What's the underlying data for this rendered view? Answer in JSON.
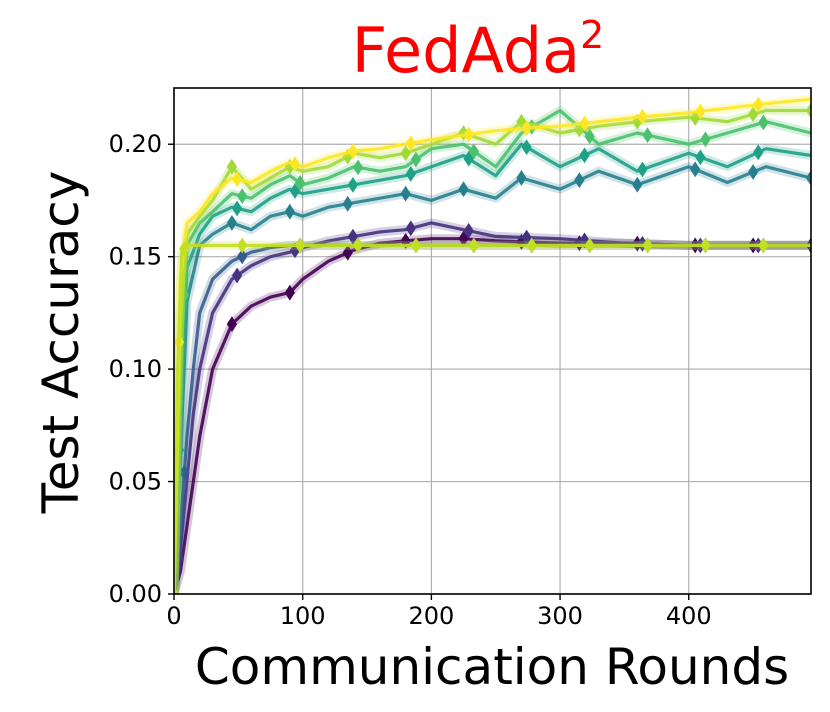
{
  "chart_data": {
    "type": "line",
    "title": "FedAda",
    "title_superscript": "2",
    "title_color": "#ff0000",
    "xlabel": "Communication Rounds",
    "ylabel": "Test Accuracy",
    "xlim": [
      0,
      495
    ],
    "ylim": [
      0.0,
      0.225
    ],
    "xticks": [
      0,
      100,
      200,
      300,
      400
    ],
    "xtick_labels": [
      "0",
      "100",
      "200",
      "300",
      "400"
    ],
    "yticks": [
      0.0,
      0.05,
      0.1,
      0.15,
      0.2
    ],
    "ytick_labels": [
      "0.00",
      "0.05",
      "0.10",
      "0.15",
      "0.20"
    ],
    "grid": true,
    "colormap": "viridis",
    "marker": "diamond",
    "marker_every_rounds": 45,
    "series": [
      {
        "color": "#440154",
        "x": [
          0,
          5,
          10,
          15,
          20,
          30,
          45,
          60,
          75,
          90,
          100,
          120,
          140,
          160,
          180,
          200,
          225,
          250,
          300,
          350,
          400,
          450,
          495
        ],
        "y": [
          0.0,
          0.01,
          0.03,
          0.05,
          0.07,
          0.1,
          0.12,
          0.128,
          0.132,
          0.134,
          0.14,
          0.148,
          0.153,
          0.156,
          0.157,
          0.158,
          0.158,
          0.157,
          0.156,
          0.156,
          0.155,
          0.155,
          0.155
        ]
      },
      {
        "color": "#46327e",
        "x": [
          0,
          5,
          10,
          15,
          20,
          30,
          45,
          60,
          75,
          90,
          100,
          120,
          140,
          160,
          180,
          200,
          225,
          250,
          300,
          350,
          400,
          450,
          495
        ],
        "y": [
          0.0,
          0.02,
          0.05,
          0.08,
          0.1,
          0.125,
          0.14,
          0.146,
          0.15,
          0.152,
          0.154,
          0.157,
          0.159,
          0.161,
          0.162,
          0.165,
          0.162,
          0.159,
          0.158,
          0.156,
          0.155,
          0.155,
          0.155
        ]
      },
      {
        "color": "#365c8d",
        "x": [
          0,
          5,
          10,
          15,
          20,
          30,
          45,
          60,
          75,
          90,
          100,
          120,
          140,
          160,
          180,
          200,
          225,
          250,
          300,
          350,
          400,
          450,
          495
        ],
        "y": [
          0.0,
          0.03,
          0.07,
          0.1,
          0.125,
          0.14,
          0.148,
          0.152,
          0.154,
          0.155,
          0.155,
          0.155,
          0.155,
          0.155,
          0.155,
          0.155,
          0.155,
          0.155,
          0.155,
          0.155,
          0.155,
          0.155,
          0.155
        ]
      },
      {
        "color": "#277f8e",
        "x": [
          0,
          5,
          10,
          20,
          30,
          45,
          60,
          75,
          90,
          100,
          120,
          140,
          160,
          180,
          200,
          225,
          250,
          270,
          300,
          330,
          360,
          400,
          430,
          460,
          495
        ],
        "y": [
          0.0,
          0.06,
          0.13,
          0.155,
          0.16,
          0.165,
          0.162,
          0.168,
          0.17,
          0.168,
          0.172,
          0.174,
          0.176,
          0.178,
          0.175,
          0.18,
          0.176,
          0.185,
          0.18,
          0.188,
          0.182,
          0.19,
          0.183,
          0.19,
          0.185
        ]
      },
      {
        "color": "#1fa187",
        "x": [
          0,
          5,
          10,
          20,
          30,
          45,
          60,
          75,
          90,
          100,
          120,
          140,
          160,
          180,
          200,
          225,
          250,
          270,
          300,
          330,
          360,
          400,
          430,
          460,
          495
        ],
        "y": [
          0.0,
          0.08,
          0.145,
          0.16,
          0.168,
          0.172,
          0.17,
          0.176,
          0.18,
          0.178,
          0.18,
          0.182,
          0.184,
          0.186,
          0.19,
          0.195,
          0.186,
          0.2,
          0.19,
          0.198,
          0.188,
          0.196,
          0.19,
          0.198,
          0.195
        ]
      },
      {
        "color": "#4ac16d",
        "x": [
          0,
          5,
          10,
          20,
          30,
          45,
          60,
          75,
          90,
          100,
          120,
          140,
          160,
          180,
          200,
          225,
          250,
          270,
          300,
          330,
          360,
          400,
          430,
          460,
          495
        ],
        "y": [
          0.0,
          0.1,
          0.155,
          0.165,
          0.17,
          0.178,
          0.176,
          0.182,
          0.186,
          0.182,
          0.185,
          0.19,
          0.188,
          0.19,
          0.198,
          0.2,
          0.19,
          0.205,
          0.215,
          0.2,
          0.205,
          0.2,
          0.205,
          0.21,
          0.205
        ]
      },
      {
        "color": "#a0da39",
        "x": [
          0,
          5,
          10,
          20,
          30,
          45,
          60,
          75,
          90,
          100,
          120,
          140,
          160,
          180,
          200,
          225,
          250,
          270,
          300,
          330,
          360,
          400,
          430,
          460,
          495
        ],
        "y": [
          0.0,
          0.12,
          0.16,
          0.168,
          0.175,
          0.19,
          0.18,
          0.185,
          0.19,
          0.188,
          0.19,
          0.196,
          0.194,
          0.196,
          0.2,
          0.205,
          0.2,
          0.21,
          0.205,
          0.208,
          0.21,
          0.212,
          0.21,
          0.215,
          0.215
        ]
      },
      {
        "color": "#fde725",
        "x": [
          0,
          5,
          10,
          20,
          30,
          45,
          60,
          75,
          90,
          100,
          120,
          140,
          160,
          180,
          200,
          225,
          250,
          270,
          300,
          330,
          360,
          400,
          430,
          460,
          495
        ],
        "y": [
          0.0,
          0.14,
          0.165,
          0.17,
          0.178,
          0.185,
          0.183,
          0.188,
          0.192,
          0.19,
          0.194,
          0.197,
          0.198,
          0.2,
          0.202,
          0.204,
          0.206,
          0.207,
          0.208,
          0.21,
          0.212,
          0.214,
          0.216,
          0.218,
          0.22
        ]
      },
      {
        "color": "#c2df23",
        "x": [
          0,
          3,
          6,
          10,
          20,
          45,
          90,
          135,
          180,
          225,
          270,
          315,
          360,
          405,
          450,
          495
        ],
        "y": [
          0.0,
          0.1,
          0.152,
          0.155,
          0.155,
          0.155,
          0.155,
          0.155,
          0.155,
          0.155,
          0.155,
          0.155,
          0.155,
          0.155,
          0.155,
          0.155
        ]
      }
    ]
  }
}
